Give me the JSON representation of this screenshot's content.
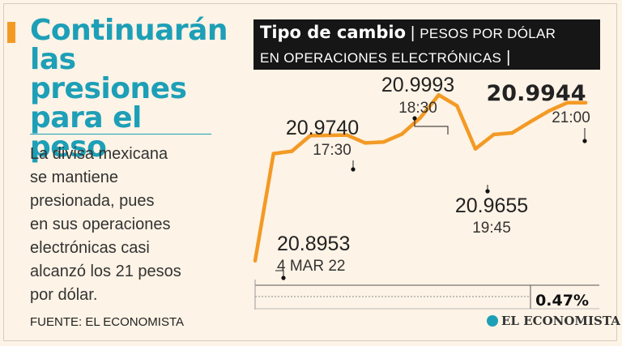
{
  "headline": {
    "line1": "Continuarán",
    "line2": "las",
    "line3": "presiones",
    "line4": "para el peso"
  },
  "body": {
    "line1": "La divisa mexicana",
    "line2": "se mantiene",
    "line3": "presionada, pues",
    "line4": "en sus operaciones",
    "line5": "electrónicas casi",
    "line6": "alcanzó los 21 pesos",
    "line7": "por dólar."
  },
  "source": "FUENTE: EL ECONOMISTA",
  "logo": "EL ECONOMISTA",
  "chart_title": {
    "bold": "Tipo de cambio",
    "sub1": "PESOS POR DÓLAR",
    "sub2": "EN OPERACIONES ELECTRÓNICAS"
  },
  "chart_data": {
    "type": "line",
    "title": "Tipo de cambio",
    "ylabel": "Pesos por dólar",
    "date": "4 MAR 22",
    "ylim": [
      20.885,
      21.005
    ],
    "x": [
      0,
      1,
      2,
      3,
      4,
      5,
      6,
      7,
      8,
      9,
      10,
      11,
      12,
      13,
      14,
      15,
      16,
      17,
      18
    ],
    "values": [
      20.8953,
      20.9625,
      20.964,
      20.9738,
      20.974,
      20.9742,
      20.9692,
      20.9698,
      20.9748,
      20.985,
      20.9993,
      20.9925,
      20.9655,
      20.9745,
      20.9755,
      20.9825,
      20.9893,
      20.9944,
      20.9944
    ],
    "annotations": [
      {
        "label": "20.8953",
        "time": "4 MAR 22",
        "index": 0
      },
      {
        "label": "20.9740",
        "time": "17:30",
        "index": 4
      },
      {
        "label": "20.9993",
        "time": "18:30",
        "index": 10
      },
      {
        "label": "20.9655",
        "time": "19:45",
        "index": 12
      },
      {
        "label": "20.9944",
        "time": "21:00",
        "index": 17
      }
    ],
    "change": "0.47%",
    "line_color": "#f39a25"
  }
}
